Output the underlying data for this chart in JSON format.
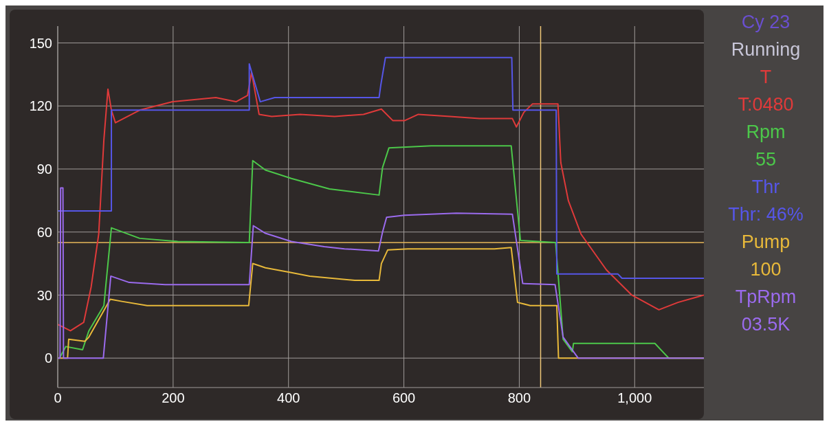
{
  "chart_data": {
    "type": "line",
    "xlim": [
      0,
      1120
    ],
    "ylim": [
      -14,
      158
    ],
    "xticks": [
      0,
      200,
      400,
      600,
      800,
      {
        "value": 1000,
        "label": "1,000"
      }
    ],
    "yticks": [
      0,
      30,
      60,
      90,
      120,
      150
    ],
    "grid": true,
    "annotations": [
      "Cy 23",
      "Running",
      "T:0480",
      "55",
      "Thr: 46%",
      "100",
      "03.5K"
    ],
    "ref_lines": [
      {
        "axis": "y",
        "value": 55,
        "color": "#e8b95a"
      },
      {
        "axis": "x",
        "value": 837,
        "color": "#f0c878"
      }
    ],
    "series": [
      {
        "name": "T",
        "color": "#e03a3a",
        "x": [
          0,
          22,
          45,
          58,
          71,
          80,
          87,
          93,
          100,
          142,
          199,
          274,
          309,
          329,
          336,
          349,
          371,
          420,
          480,
          530,
          561,
          581,
          601,
          625,
          680,
          731,
          788,
          795,
          808,
          823,
          867,
          872,
          885,
          907,
          951,
          995,
          1042,
          1075,
          1120
        ],
        "values": [
          16,
          13,
          17,
          34,
          59,
          104,
          128,
          118,
          112,
          118,
          122,
          124,
          122,
          125,
          136,
          116,
          115,
          116,
          115,
          116,
          118.5,
          113,
          113,
          116,
          115,
          114,
          114,
          110,
          117,
          121,
          121,
          93,
          75,
          59,
          42,
          30,
          23,
          26.5,
          30
        ]
      },
      {
        "name": "Rpm",
        "color": "#4cc84a",
        "x": [
          3,
          14,
          43,
          54,
          80,
          93,
          142,
          208,
          332,
          338,
          360,
          405,
          471,
          557,
          563,
          574,
          647,
          786,
          802,
          863,
          876,
          892,
          894,
          1035,
          1059,
          1120
        ],
        "values": [
          0,
          5.5,
          4,
          13,
          25,
          62,
          57,
          55.5,
          55,
          94,
          89.5,
          85.5,
          80.5,
          77.6,
          90.7,
          100,
          101,
          101,
          56,
          55,
          9,
          3,
          7,
          7,
          0,
          0
        ]
      },
      {
        "name": "Thr",
        "color": "#5656e8",
        "x": [
          0,
          93,
          93,
          332,
          332,
          351,
          376,
          557,
          560,
          568,
          787,
          789,
          864,
          865,
          971,
          978,
          1120
        ],
        "values": [
          70,
          70,
          118,
          118,
          140,
          122,
          124,
          124,
          130,
          143,
          143,
          118,
          118,
          40,
          40,
          38,
          38
        ]
      },
      {
        "name": "Pump",
        "color": "#e8b93a",
        "x": [
          0,
          17,
          19,
          47,
          54,
          91,
          111,
          155,
          331,
          338,
          360,
          405,
          437,
          515,
          557,
          561,
          572,
          607,
          757,
          786,
          797,
          819,
          865,
          868,
          1120
        ],
        "values": [
          0,
          0,
          9,
          8,
          10,
          28,
          27,
          25,
          25,
          45,
          43,
          40.7,
          39,
          37,
          37,
          45,
          51.5,
          52,
          52,
          52.6,
          26.5,
          25,
          25,
          0,
          0
        ]
      },
      {
        "name": "TpRpm",
        "color": "#9b6bee",
        "x": [
          0,
          4,
          5,
          9,
          10,
          79,
          92,
          124,
          186,
          332,
          339,
          360,
          405,
          462,
          497,
          556,
          563,
          570,
          601,
          691,
          788,
          806,
          862,
          876,
          902,
          1120
        ],
        "values": [
          0,
          0,
          81,
          81,
          0,
          0,
          39,
          36,
          35,
          35,
          63,
          59.4,
          55.5,
          53,
          52,
          51,
          60,
          67,
          68,
          69,
          68.5,
          35.5,
          35,
          10,
          0,
          0
        ]
      }
    ]
  }
}
